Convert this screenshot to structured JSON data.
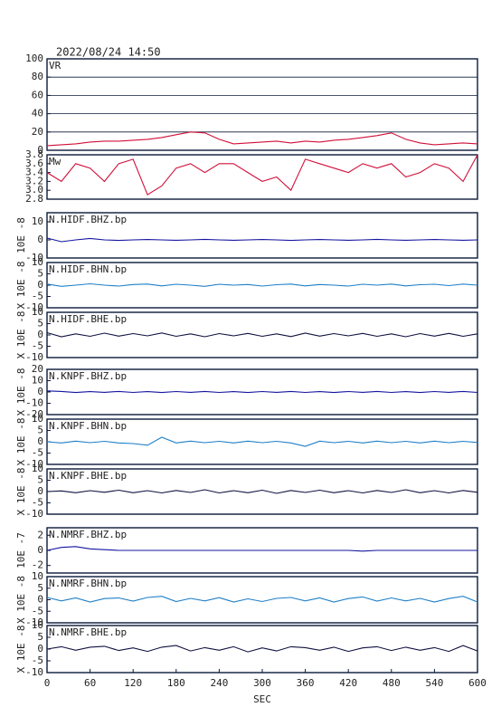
{
  "chart_data": [
    {
      "type": "line",
      "title": "2022/08/24 14:50",
      "x": [
        0,
        20,
        40,
        60,
        80,
        100,
        120,
        140,
        160,
        180,
        200,
        220,
        240,
        260,
        280,
        300,
        320,
        340,
        360,
        380,
        400,
        420,
        440,
        460,
        480,
        500,
        520,
        540,
        560,
        580,
        600
      ],
      "xlim": [
        0,
        600
      ],
      "ylim": [
        0,
        100
      ],
      "yticks": [
        0,
        20,
        40,
        60,
        80,
        100
      ],
      "grid": true,
      "series": [
        {
          "name": "VR",
          "color": "#d0103a",
          "values": [
            5,
            6,
            7,
            9,
            10,
            10,
            11,
            12,
            14,
            17,
            20,
            19,
            12,
            7,
            8,
            9,
            10,
            8,
            10,
            9,
            11,
            12,
            14,
            16,
            19,
            12,
            8,
            6,
            7,
            8,
            7
          ]
        }
      ]
    },
    {
      "type": "line",
      "x": [
        0,
        20,
        40,
        60,
        80,
        100,
        120,
        140,
        160,
        180,
        200,
        220,
        240,
        260,
        280,
        300,
        320,
        340,
        360,
        380,
        400,
        420,
        440,
        460,
        480,
        500,
        520,
        540,
        560,
        580,
        600
      ],
      "xlim": [
        0,
        600
      ],
      "ylim": [
        2.8,
        3.8
      ],
      "yticks": [
        2.8,
        {
          "value": 3,
          "label": "3.0"
        },
        3.2,
        3.4,
        3.6,
        3.8
      ],
      "grid": false,
      "series": [
        {
          "name": "Mw",
          "color": "#d0103a",
          "values": [
            3.4,
            3.2,
            3.6,
            3.5,
            3.2,
            3.6,
            3.7,
            2.9,
            3.1,
            3.5,
            3.6,
            3.4,
            3.6,
            3.6,
            3.4,
            3.2,
            3.3,
            3.0,
            3.7,
            3.6,
            3.5,
            3.4,
            3.6,
            3.5,
            3.6,
            3.3,
            3.4,
            3.6,
            3.5,
            3.2,
            3.8
          ]
        }
      ]
    },
    {
      "type": "line",
      "ylabel": "10E -8",
      "x": [
        0,
        20,
        40,
        60,
        80,
        100,
        120,
        140,
        160,
        180,
        200,
        220,
        240,
        260,
        280,
        300,
        320,
        340,
        360,
        380,
        400,
        420,
        440,
        460,
        480,
        500,
        520,
        540,
        560,
        580,
        600
      ],
      "xlim": [
        0,
        600
      ],
      "ylim": [
        -10,
        15
      ],
      "yticks": [
        -10,
        0,
        10
      ],
      "grid": false,
      "series": [
        {
          "name": "N.HIDF.BHZ.bp",
          "color": "#1414a0",
          "values": [
            1,
            -1,
            0,
            0.8,
            0,
            -0.3,
            0,
            0.2,
            0,
            -0.2,
            0,
            0.3,
            0,
            -0.2,
            0,
            0.2,
            0,
            -0.3,
            0,
            0.2,
            0,
            -0.2,
            0,
            0.3,
            0,
            -0.2,
            0,
            0.2,
            0,
            -0.2,
            0
          ]
        }
      ]
    },
    {
      "type": "line",
      "ylabel": "X 10E -8",
      "x": [
        0,
        20,
        40,
        60,
        80,
        100,
        120,
        140,
        160,
        180,
        200,
        220,
        240,
        260,
        280,
        300,
        320,
        340,
        360,
        380,
        400,
        420,
        440,
        460,
        480,
        500,
        520,
        540,
        560,
        580,
        600
      ],
      "xlim": [
        0,
        600
      ],
      "ylim": [
        -10,
        10
      ],
      "yticks": [
        -10,
        -5,
        0,
        5,
        10
      ],
      "grid": false,
      "series": [
        {
          "name": "N.HIDF.BHN.bp",
          "color": "#1e7fc8",
          "values": [
            0.5,
            -0.5,
            0,
            0.6,
            0,
            -0.4,
            0.3,
            0.5,
            -0.3,
            0.4,
            0,
            -0.5,
            0.4,
            0,
            0.3,
            -0.4,
            0.2,
            0.5,
            -0.3,
            0.3,
            0,
            -0.4,
            0.4,
            0,
            0.5,
            -0.3,
            0.2,
            0.4,
            -0.2,
            0.5,
            0
          ]
        }
      ]
    },
    {
      "type": "line",
      "ylabel": "X 10E -8",
      "x": [
        0,
        20,
        40,
        60,
        80,
        100,
        120,
        140,
        160,
        180,
        200,
        220,
        240,
        260,
        280,
        300,
        320,
        340,
        360,
        380,
        400,
        420,
        440,
        460,
        480,
        500,
        520,
        540,
        560,
        580,
        600
      ],
      "xlim": [
        0,
        600
      ],
      "ylim": [
        -10,
        10
      ],
      "yticks": [
        -10,
        -5,
        0,
        5,
        10
      ],
      "grid": false,
      "series": [
        {
          "name": "N.HIDF.BHE.bp",
          "color": "#101040",
          "values": [
            1,
            -0.8,
            0.5,
            -0.6,
            0.8,
            -0.5,
            0.6,
            -0.4,
            0.9,
            -0.6,
            0.5,
            -0.8,
            0.6,
            -0.4,
            0.7,
            -0.6,
            0.5,
            -0.7,
            0.8,
            -0.5,
            0.6,
            -0.4,
            0.7,
            -0.6,
            0.5,
            -0.8,
            0.6,
            -0.5,
            0.7,
            -0.6,
            0.5
          ]
        }
      ]
    },
    {
      "type": "line",
      "ylabel": "X 10E -8",
      "x": [
        0,
        20,
        40,
        60,
        80,
        100,
        120,
        140,
        160,
        180,
        200,
        220,
        240,
        260,
        280,
        300,
        320,
        340,
        360,
        380,
        400,
        420,
        440,
        460,
        480,
        500,
        520,
        540,
        560,
        580,
        600
      ],
      "xlim": [
        0,
        600
      ],
      "ylim": [
        -20,
        20
      ],
      "yticks": [
        -20,
        -10,
        0,
        10,
        20
      ],
      "grid": false,
      "series": [
        {
          "name": "N.KNPF.BHZ.bp",
          "color": "#1414a0",
          "values": [
            1,
            0.5,
            -0.5,
            0.3,
            -0.3,
            0.5,
            -0.4,
            0.3,
            -0.5,
            0.4,
            -0.3,
            0.5,
            -0.4,
            0.3,
            -0.5,
            0.4,
            -0.3,
            0.5,
            -0.4,
            0.3,
            -0.5,
            0.4,
            -0.3,
            0.5,
            -0.4,
            0.3,
            -0.5,
            0.4,
            -0.3,
            0.5,
            -0.4
          ]
        }
      ]
    },
    {
      "type": "line",
      "ylabel": "X 10E -8",
      "x": [
        0,
        20,
        40,
        60,
        80,
        100,
        120,
        140,
        160,
        180,
        200,
        220,
        240,
        260,
        280,
        300,
        320,
        340,
        360,
        380,
        400,
        420,
        440,
        460,
        480,
        500,
        520,
        540,
        560,
        580,
        600
      ],
      "xlim": [
        0,
        600
      ],
      "ylim": [
        -10,
        10
      ],
      "yticks": [
        -10,
        -5,
        0,
        5,
        10
      ],
      "grid": false,
      "series": [
        {
          "name": "N.KNPF.BHN.bp",
          "color": "#1e7fc8",
          "values": [
            0,
            -0.5,
            0.3,
            -0.4,
            0.2,
            -0.5,
            -0.8,
            -1.5,
            2,
            -0.5,
            0.3,
            -0.4,
            0.2,
            -0.5,
            0.3,
            -0.4,
            0.2,
            -0.5,
            -2,
            0.3,
            -0.4,
            0.2,
            -0.5,
            0.3,
            -0.4,
            0.2,
            -0.5,
            0.3,
            -0.4,
            0.2,
            -0.3
          ]
        }
      ]
    },
    {
      "type": "line",
      "ylabel": "X 10E -8",
      "x": [
        0,
        20,
        40,
        60,
        80,
        100,
        120,
        140,
        160,
        180,
        200,
        220,
        240,
        260,
        280,
        300,
        320,
        340,
        360,
        380,
        400,
        420,
        440,
        460,
        480,
        500,
        520,
        540,
        560,
        580,
        600
      ],
      "xlim": [
        0,
        600
      ],
      "ylim": [
        -10,
        10
      ],
      "yticks": [
        -10,
        -5,
        0,
        5,
        10
      ],
      "grid": false,
      "series": [
        {
          "name": "N.KNPF.BHE.bp",
          "color": "#101040",
          "values": [
            0,
            0.3,
            -0.5,
            0.4,
            -0.3,
            0.6,
            -0.5,
            0.4,
            -0.6,
            0.5,
            -0.4,
            0.8,
            -0.6,
            0.4,
            -0.5,
            0.6,
            -0.8,
            0.5,
            -0.4,
            0.6,
            -0.5,
            0.4,
            -0.6,
            0.5,
            -0.4,
            0.8,
            -0.5,
            0.4,
            -0.6,
            0.5,
            -0.3
          ]
        }
      ]
    },
    {
      "type": "line",
      "ylabel": "10E -7",
      "x": [
        0,
        20,
        40,
        60,
        80,
        100,
        120,
        140,
        160,
        180,
        200,
        220,
        240,
        260,
        280,
        300,
        320,
        340,
        360,
        380,
        400,
        420,
        440,
        460,
        480,
        500,
        520,
        540,
        560,
        580,
        600
      ],
      "xlim": [
        0,
        600
      ],
      "ylim": [
        -3,
        3
      ],
      "yticks": [
        -2,
        0,
        2
      ],
      "grid": false,
      "series": [
        {
          "name": "N.NMRF.BHZ.bp",
          "color": "#1414a0",
          "values": [
            0,
            0.4,
            0.5,
            0.2,
            0.1,
            0,
            0,
            0,
            0,
            0,
            0,
            0,
            0,
            0,
            0,
            0,
            0,
            0,
            0,
            0,
            0,
            0,
            -0.1,
            0,
            0,
            0,
            0,
            0,
            0,
            0,
            0
          ]
        }
      ]
    },
    {
      "type": "line",
      "ylabel": "X 10E -8",
      "x": [
        0,
        20,
        40,
        60,
        80,
        100,
        120,
        140,
        160,
        180,
        200,
        220,
        240,
        260,
        280,
        300,
        320,
        340,
        360,
        380,
        400,
        420,
        440,
        460,
        480,
        500,
        520,
        540,
        560,
        580,
        600
      ],
      "xlim": [
        0,
        600
      ],
      "ylim": [
        -10,
        10
      ],
      "yticks": [
        -10,
        -5,
        0,
        5,
        10
      ],
      "grid": false,
      "series": [
        {
          "name": "N.NMRF.BHN.bp",
          "color": "#1e7fc8",
          "values": [
            1,
            -0.5,
            0.8,
            -1,
            0.5,
            0.8,
            -0.6,
            1,
            1.5,
            -0.8,
            0.6,
            -0.5,
            0.9,
            -1,
            0.4,
            -0.8,
            0.6,
            1,
            -0.5,
            0.8,
            -1,
            0.5,
            1.2,
            -0.6,
            0.8,
            -0.5,
            0.6,
            -1,
            0.5,
            1.5,
            -1
          ]
        }
      ]
    },
    {
      "type": "line",
      "ylabel": "X 10E -8",
      "xlabel": "SEC",
      "x": [
        0,
        20,
        40,
        60,
        80,
        100,
        120,
        140,
        160,
        180,
        200,
        220,
        240,
        260,
        280,
        300,
        320,
        340,
        360,
        380,
        400,
        420,
        440,
        460,
        480,
        500,
        520,
        540,
        560,
        580,
        600
      ],
      "xlim": [
        0,
        600
      ],
      "xticks": [
        0,
        60,
        120,
        180,
        240,
        300,
        360,
        420,
        480,
        540,
        600
      ],
      "ylim": [
        -10,
        10
      ],
      "yticks": [
        -10,
        -5,
        0,
        5,
        10
      ],
      "grid": false,
      "series": [
        {
          "name": "N.NMRF.BHE.bp",
          "color": "#101040",
          "values": [
            0,
            1,
            -0.5,
            0.8,
            1.2,
            -0.6,
            0.5,
            -1,
            0.8,
            1.5,
            -0.8,
            0.6,
            -0.5,
            1,
            -1.2,
            0.5,
            -0.8,
            1,
            0.6,
            -0.5,
            0.8,
            -1,
            0.5,
            1,
            -0.6,
            0.8,
            -0.5,
            0.6,
            -1,
            1.5,
            -0.8
          ]
        }
      ]
    }
  ]
}
